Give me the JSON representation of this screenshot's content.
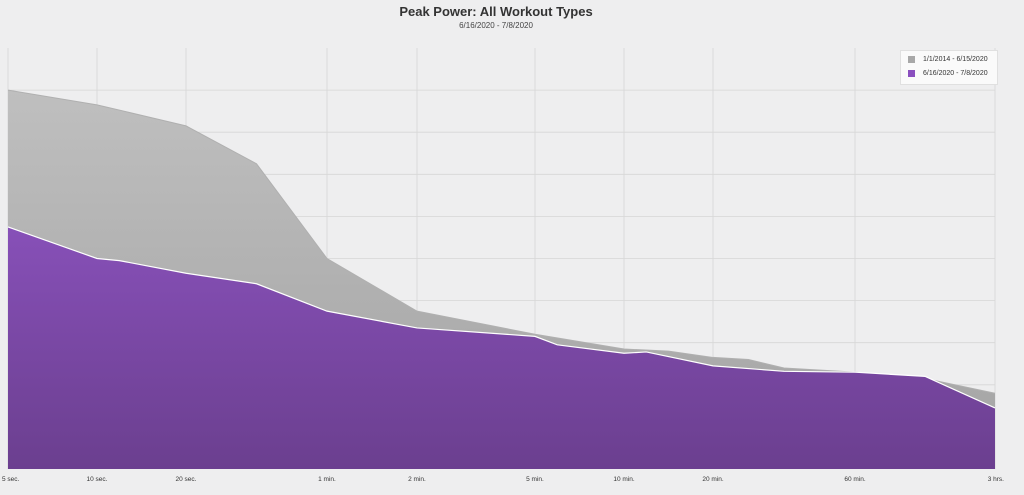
{
  "chart_data": {
    "type": "area",
    "title": "Peak Power: All Workout Types",
    "subtitle": "6/16/2020 - 7/8/2020",
    "x_categories": [
      "5 sec.",
      "10 sec.",
      "20 sec.",
      "1 min.",
      "2 min.",
      "5 min.",
      "10 min.",
      "20 min.",
      "60 min.",
      "3 hrs."
    ],
    "grid": true,
    "legend_position": "top-right",
    "series": [
      {
        "name": "1/1/2014 - 6/15/2020",
        "color": "#a8a8a8",
        "points": [
          [
            0,
            9.0
          ],
          [
            1,
            8.65
          ],
          [
            2,
            8.15
          ],
          [
            2.5,
            7.25
          ],
          [
            3,
            5.0
          ],
          [
            4,
            3.75
          ],
          [
            5,
            3.2
          ],
          [
            6,
            2.85
          ],
          [
            6.5,
            2.8
          ],
          [
            7,
            2.65
          ],
          [
            7.25,
            2.6
          ],
          [
            7.5,
            2.4
          ],
          [
            8,
            2.3
          ],
          [
            8.5,
            2.15
          ],
          [
            9,
            1.8
          ]
        ],
        "fill_top": "#bfbfbf",
        "fill_bottom": "#a3a3a3"
      },
      {
        "name": "6/16/2020 - 7/8/2020",
        "color": "#8a4fbf",
        "points": [
          [
            0,
            5.75
          ],
          [
            1,
            5.0
          ],
          [
            1.25,
            4.95
          ],
          [
            2,
            4.65
          ],
          [
            2.5,
            4.4
          ],
          [
            3,
            3.75
          ],
          [
            4,
            3.35
          ],
          [
            5,
            3.15
          ],
          [
            5.25,
            2.95
          ],
          [
            6,
            2.75
          ],
          [
            6.25,
            2.78
          ],
          [
            7,
            2.45
          ],
          [
            7.5,
            2.32
          ],
          [
            8,
            2.3
          ],
          [
            8.5,
            2.2
          ],
          [
            9,
            1.45
          ]
        ],
        "fill_top": "#8750b8",
        "fill_bottom": "#6b3f8f"
      }
    ]
  }
}
